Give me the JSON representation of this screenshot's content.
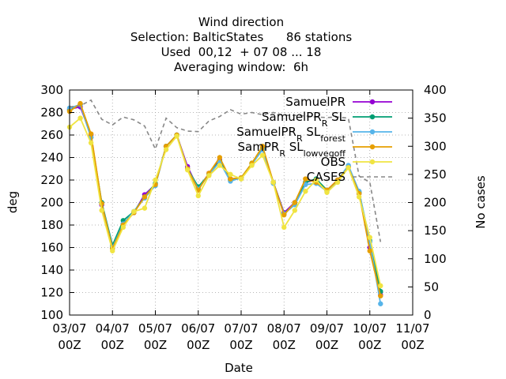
{
  "chart_data": {
    "type": "line",
    "title_lines": [
      "Wind direction",
      "Selection: BalticStates      86 stations",
      "Used  00,12  + 07 08 ... 18",
      "Averaging window:  6h"
    ],
    "xlabel": "Date",
    "ylabel": "deg",
    "y2label": "No cases",
    "x_ticks": [
      {
        "x": 0,
        "line1": "03/07",
        "line2": "00Z"
      },
      {
        "x": 1,
        "line1": "04/07",
        "line2": "00Z"
      },
      {
        "x": 2,
        "line1": "05/07",
        "line2": "00Z"
      },
      {
        "x": 3,
        "line1": "06/07",
        "line2": "00Z"
      },
      {
        "x": 4,
        "line1": "07/07",
        "line2": "00Z"
      },
      {
        "x": 5,
        "line1": "08/07",
        "line2": "00Z"
      },
      {
        "x": 6,
        "line1": "09/07",
        "line2": "00Z"
      },
      {
        "x": 7,
        "line1": "10/07",
        "line2": "00Z"
      },
      {
        "x": 8,
        "line1": "11/07",
        "line2": "00Z"
      }
    ],
    "xlim": [
      0,
      8
    ],
    "ylim": [
      100,
      300
    ],
    "y_ticks": [
      100,
      120,
      140,
      160,
      180,
      200,
      220,
      240,
      260,
      280,
      300
    ],
    "y2lim": [
      0,
      400
    ],
    "y2_ticks": [
      0,
      50,
      100,
      150,
      200,
      250,
      300,
      350,
      400
    ],
    "grid": true,
    "legend_position": "top-right",
    "x": [
      0.0,
      0.25,
      0.5,
      0.75,
      1.0,
      1.25,
      1.5,
      1.75,
      2.0,
      2.25,
      2.5,
      2.75,
      3.0,
      3.25,
      3.5,
      3.75,
      4.0,
      4.25,
      4.5,
      4.75,
      5.0,
      5.25,
      5.5,
      5.75,
      6.0,
      6.25,
      6.5,
      6.75,
      7.0,
      7.25
    ],
    "series": [
      {
        "name": "SamuelPR",
        "color": "#9400d3",
        "marker": "plus",
        "values": [
          283,
          285,
          260,
          198,
          160,
          181,
          191,
          207,
          216,
          250,
          260,
          232,
          212,
          226,
          238,
          221,
          222,
          234,
          249,
          218,
          191,
          200,
          218,
          220,
          211,
          220,
          232,
          208,
          160,
          118
        ]
      },
      {
        "name": "SamuelPR_R SL",
        "color": "#009e73",
        "marker": "plus",
        "values": [
          282,
          287,
          258,
          200,
          162,
          184,
          192,
          205,
          217,
          250,
          260,
          230,
          214,
          225,
          237,
          220,
          222,
          235,
          248,
          218,
          190,
          199,
          218,
          221,
          211,
          219,
          232,
          209,
          166,
          121
        ]
      },
      {
        "name": "SamuelPR_R SL_forest",
        "color": "#56b4e9",
        "marker": "plus",
        "values": [
          284,
          287,
          258,
          199,
          160,
          181,
          192,
          204,
          215,
          250,
          260,
          230,
          212,
          225,
          236,
          219,
          222,
          234,
          247,
          217,
          190,
          198,
          216,
          217,
          210,
          220,
          233,
          210,
          165,
          110
        ]
      },
      {
        "name": "SamPR_R SL_lowvegoff",
        "color": "#e69f00",
        "marker": "plus",
        "values": [
          281,
          288,
          261,
          199,
          159,
          180,
          191,
          205,
          216,
          250,
          260,
          230,
          211,
          226,
          240,
          221,
          222,
          235,
          250,
          218,
          189,
          200,
          221,
          218,
          211,
          220,
          231,
          208,
          157,
          117
        ]
      },
      {
        "name": "OBS",
        "color": "#f0e442",
        "marker": "plus",
        "values": [
          267,
          275,
          253,
          193,
          157,
          178,
          192,
          195,
          220,
          247,
          259,
          229,
          206,
          224,
          233,
          225,
          221,
          233,
          242,
          218,
          178,
          193,
          210,
          220,
          209,
          218,
          231,
          205,
          169,
          126
        ]
      },
      {
        "name": "CASES",
        "color": "#888888",
        "dashed": true,
        "axis": "y2",
        "values": [
          370,
          372,
          382,
          348,
          338,
          352,
          347,
          336,
          295,
          350,
          333,
          327,
          326,
          345,
          353,
          365,
          357,
          360,
          356,
          360,
          355,
          355,
          354,
          352,
          351,
          352,
          350,
          247,
          236,
          130
        ]
      }
    ]
  }
}
